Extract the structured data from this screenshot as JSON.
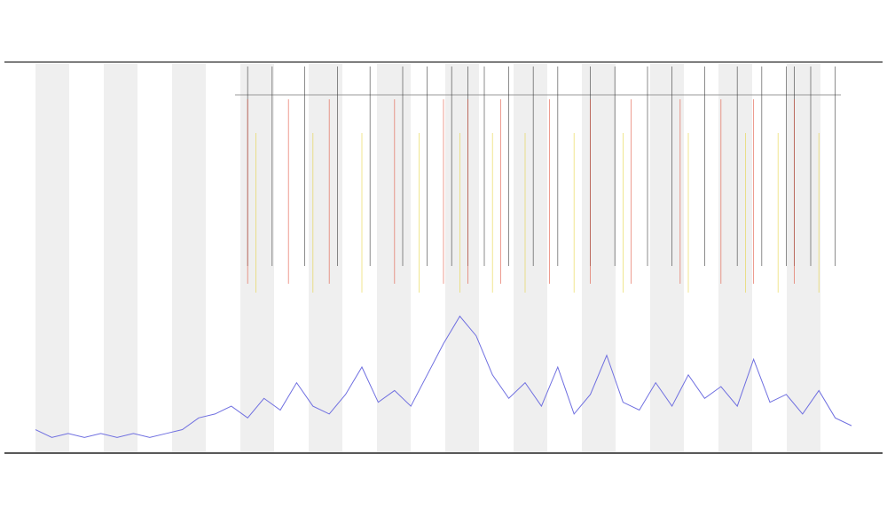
{
  "chart_data": {
    "type": "line",
    "xlim": [
      0,
      100
    ],
    "ylim": [
      0,
      100
    ],
    "x": [
      0,
      2,
      4,
      6,
      8,
      10,
      12,
      14,
      16,
      18,
      20,
      22,
      24,
      26,
      28,
      30,
      32,
      34,
      36,
      38,
      40,
      42,
      44,
      46,
      48,
      50,
      52,
      54,
      56,
      58,
      60,
      62,
      64,
      66,
      68,
      70,
      72,
      74,
      76,
      78,
      80,
      82,
      84,
      86,
      88,
      90,
      92,
      94,
      96,
      98,
      100
    ],
    "series": [
      {
        "color": "#6f6fe0",
        "values": [
          6,
          4,
          5,
          4,
          5,
          4,
          5,
          4,
          5,
          6,
          9,
          10,
          12,
          9,
          14,
          11,
          18,
          12,
          10,
          15,
          22,
          13,
          16,
          12,
          20,
          28,
          35,
          30,
          20,
          14,
          18,
          12,
          22,
          10,
          15,
          25,
          13,
          11,
          18,
          12,
          20,
          14,
          17,
          12,
          24,
          13,
          15,
          10,
          16,
          9,
          7
        ]
      }
    ],
    "events": [
      {
        "color": "#333333",
        "x": [
          26,
          29,
          33,
          37,
          41,
          45,
          48,
          51,
          53,
          55,
          58,
          61,
          64,
          68,
          71,
          75,
          78,
          82,
          86,
          89,
          92,
          93,
          95,
          98
        ]
      },
      {
        "color": "#e0503a",
        "x": [
          26,
          31,
          36,
          44,
          50,
          53,
          57,
          63,
          68,
          73,
          79,
          84,
          88,
          93
        ]
      },
      {
        "color": "#e6d23a",
        "x": [
          27,
          34,
          40,
          47,
          52,
          56,
          60,
          66,
          72,
          80,
          87,
          91,
          96
        ]
      }
    ]
  }
}
